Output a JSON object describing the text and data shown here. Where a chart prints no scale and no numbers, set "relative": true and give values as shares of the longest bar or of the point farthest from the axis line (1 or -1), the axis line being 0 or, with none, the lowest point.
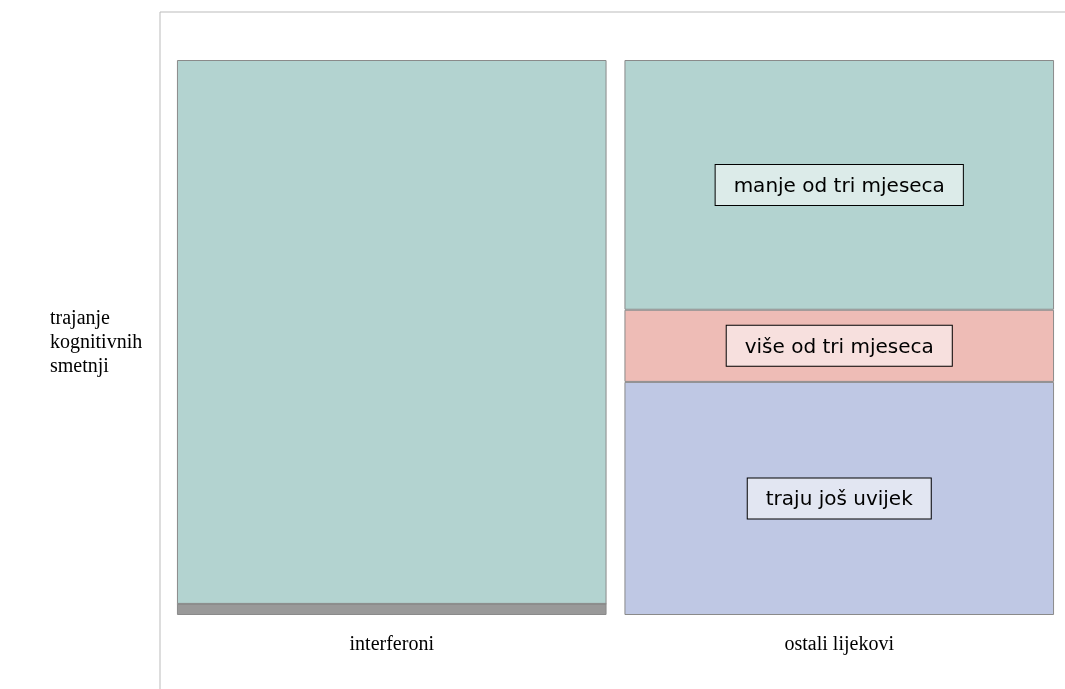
{
  "chart_data": {
    "type": "bar",
    "stacked": true,
    "relative": true,
    "legend": false,
    "ylabel": "trajanje kognitivnih smetnji",
    "categories": [
      "interferoni",
      "ostali lijekovi"
    ],
    "series": [
      {
        "name": "traju još uvijek",
        "color": "#bfc8e4",
        "colors": [
          "#999999",
          "#bfc8e4"
        ],
        "values": [
          0.02,
          0.42
        ]
      },
      {
        "name": "više od tri mjeseca",
        "color": "#eebcb6",
        "values": [
          0,
          0.13
        ]
      },
      {
        "name": "manje od tri mjeseca",
        "color": "#b3d3d0",
        "values": [
          0.98,
          0.45
        ]
      }
    ]
  }
}
